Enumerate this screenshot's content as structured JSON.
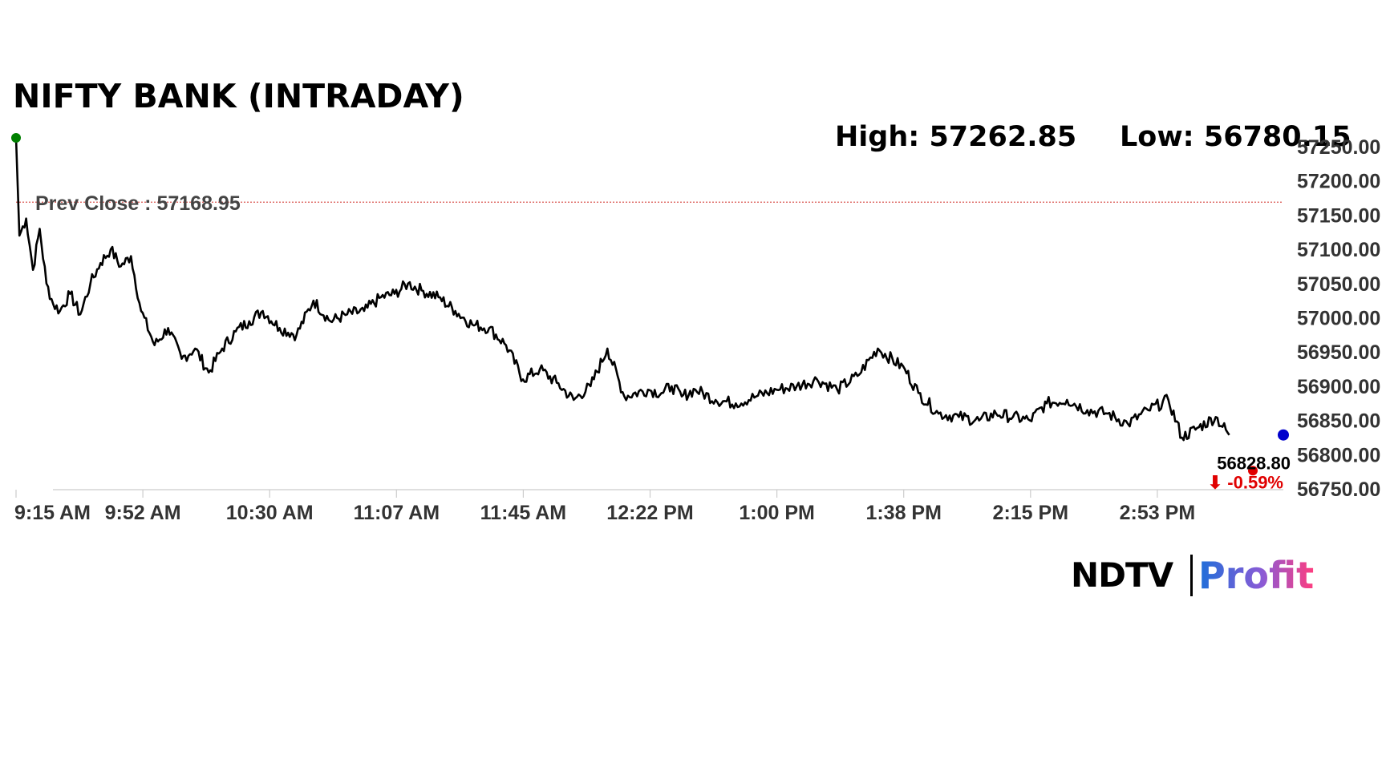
{
  "title": "NIFTY BANK (INTRADAY)",
  "high_text": "High: 57262.85",
  "low_text": "Low: 56780.15",
  "logo": {
    "left": "NDTV",
    "right": "Profit"
  },
  "colors": {
    "line": "#000000",
    "prev_close_line": "#d9534f",
    "open_marker": "#008000",
    "last_marker": "#0000cc",
    "change_down": "#e00000",
    "logo_gradient_start": "#1e6fd9",
    "logo_gradient_end": "#ff3d7f"
  },
  "chart_data": {
    "type": "line",
    "title": "NIFTY BANK (INTRADAY)",
    "xlabel": "",
    "ylabel": "",
    "ylim": [
      56750,
      57250
    ],
    "x_ticks": [
      "9:15 AM",
      "9:52 AM",
      "10:30 AM",
      "11:07 AM",
      "11:45 AM",
      "12:22 PM",
      "1:00 PM",
      "1:38 PM",
      "2:15 PM",
      "2:53 PM"
    ],
    "y_ticks": [
      "57250.00",
      "57200.00",
      "57150.00",
      "57100.00",
      "57050.00",
      "57000.00",
      "56950.00",
      "56900.00",
      "56850.00",
      "56800.00",
      "56750.00"
    ],
    "y_tick_values": [
      57250,
      57200,
      57150,
      57100,
      57050,
      57000,
      56950,
      56900,
      56850,
      56800,
      56750
    ],
    "prev_close": {
      "label": "Prev Close : 57168.95",
      "value": 57168.95
    },
    "high": 57262.85,
    "low": 56780.15,
    "last": {
      "value": 56828.8,
      "label": "56828.80",
      "change_label": "⬇ -0.59%"
    },
    "series": [
      {
        "x": [
          "9:15",
          "9:16",
          "9:18",
          "9:20",
          "9:22",
          "9:24",
          "9:26",
          "9:28",
          "9:31",
          "9:34",
          "9:37",
          "9:40",
          "9:43",
          "9:46",
          "9:49",
          "9:52",
          "9:56",
          "10:00",
          "10:04",
          "10:08",
          "10:12",
          "10:16",
          "10:20",
          "10:24",
          "10:28",
          "10:33",
          "10:38",
          "10:43",
          "10:48",
          "10:53",
          "10:58",
          "11:03",
          "11:07",
          "11:11",
          "11:15",
          "11:20",
          "11:25",
          "11:30",
          "11:35",
          "11:40",
          "11:45",
          "11:50",
          "11:55",
          "12:00",
          "12:05",
          "12:10",
          "12:15",
          "12:22",
          "12:26",
          "12:29",
          "12:32",
          "12:36",
          "12:42",
          "12:48",
          "12:54",
          "13:00",
          "13:06",
          "13:12",
          "13:18",
          "13:24",
          "13:30",
          "13:38",
          "13:42",
          "13:48",
          "13:54",
          "14:00",
          "14:05",
          "14:10",
          "14:15",
          "14:20",
          "14:26",
          "14:32",
          "14:38",
          "14:44",
          "14:50",
          "14:56",
          "15:00",
          "15:05",
          "15:10",
          "15:14"
        ],
        "values": [
          57262.85,
          57120,
          57145,
          57070,
          57130,
          57050,
          57020,
          57010,
          57035,
          57005,
          57050,
          57080,
          57100,
          57075,
          57090,
          57010,
          56960,
          56985,
          56940,
          56955,
          56920,
          56955,
          56980,
          56995,
          57010,
          56985,
          56975,
          57025,
          56995,
          57005,
          57010,
          57030,
          57035,
          57050,
          57040,
          57030,
          57010,
          56990,
          56985,
          56960,
          56910,
          56925,
          56905,
          56880,
          56900,
          56955,
          56885,
          56895,
          56890,
          56900,
          56885,
          56895,
          56880,
          56875,
          56885,
          56895,
          56900,
          56910,
          56895,
          56915,
          56955,
          56925,
          56890,
          56860,
          56855,
          56850,
          56860,
          56855,
          56850,
          56875,
          56880,
          56865,
          56860,
          56845,
          56865,
          56880,
          56825,
          56840,
          56855,
          56828.8
        ]
      }
    ]
  }
}
